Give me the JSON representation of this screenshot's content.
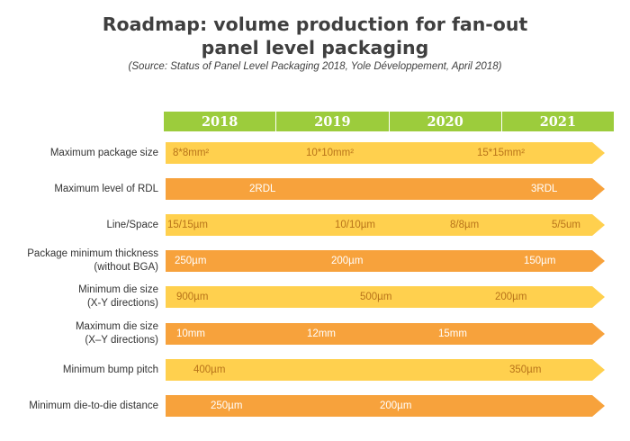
{
  "title_line1": "Roadmap: volume production for fan-out",
  "title_line2": "panel level packaging",
  "source": "(Source: Status of Panel Level Packaging 2018, Yole Développement, April 2018)",
  "years": [
    "2018",
    "2019",
    "2020",
    "2021"
  ],
  "rows": [
    {
      "label": [
        "Maximum package size"
      ],
      "color": "yellow",
      "values": [
        "8*8mm²",
        "10*10mm²",
        "15*15mm²"
      ]
    },
    {
      "label": [
        "Maximum level of RDL"
      ],
      "color": "orange",
      "values": [
        "2RDL",
        "3RDL"
      ]
    },
    {
      "label": [
        "Line/Space"
      ],
      "color": "yellow",
      "values": [
        "15/15µm",
        "10/10µm",
        "8/8µm",
        "5/5um"
      ]
    },
    {
      "label": [
        "Package minimum thickness",
        "(without BGA)"
      ],
      "color": "orange",
      "values": [
        "250µm",
        "200µm",
        "150µm"
      ]
    },
    {
      "label": [
        "Minimum die size",
        "(X-Y directions)"
      ],
      "color": "yellow",
      "values": [
        "900µm",
        "500µm",
        "200µm"
      ]
    },
    {
      "label": [
        "Maximum die size",
        "(X–Y directions)"
      ],
      "color": "orange",
      "values": [
        "10mm",
        "12mm",
        "15mm"
      ]
    },
    {
      "label": [
        "Minimum bump pitch"
      ],
      "color": "yellow",
      "values": [
        "400µm",
        "350µm"
      ]
    },
    {
      "label": [
        "Minimum die-to-die distance"
      ],
      "color": "orange",
      "values": [
        "250µm",
        "200µm"
      ]
    }
  ]
}
